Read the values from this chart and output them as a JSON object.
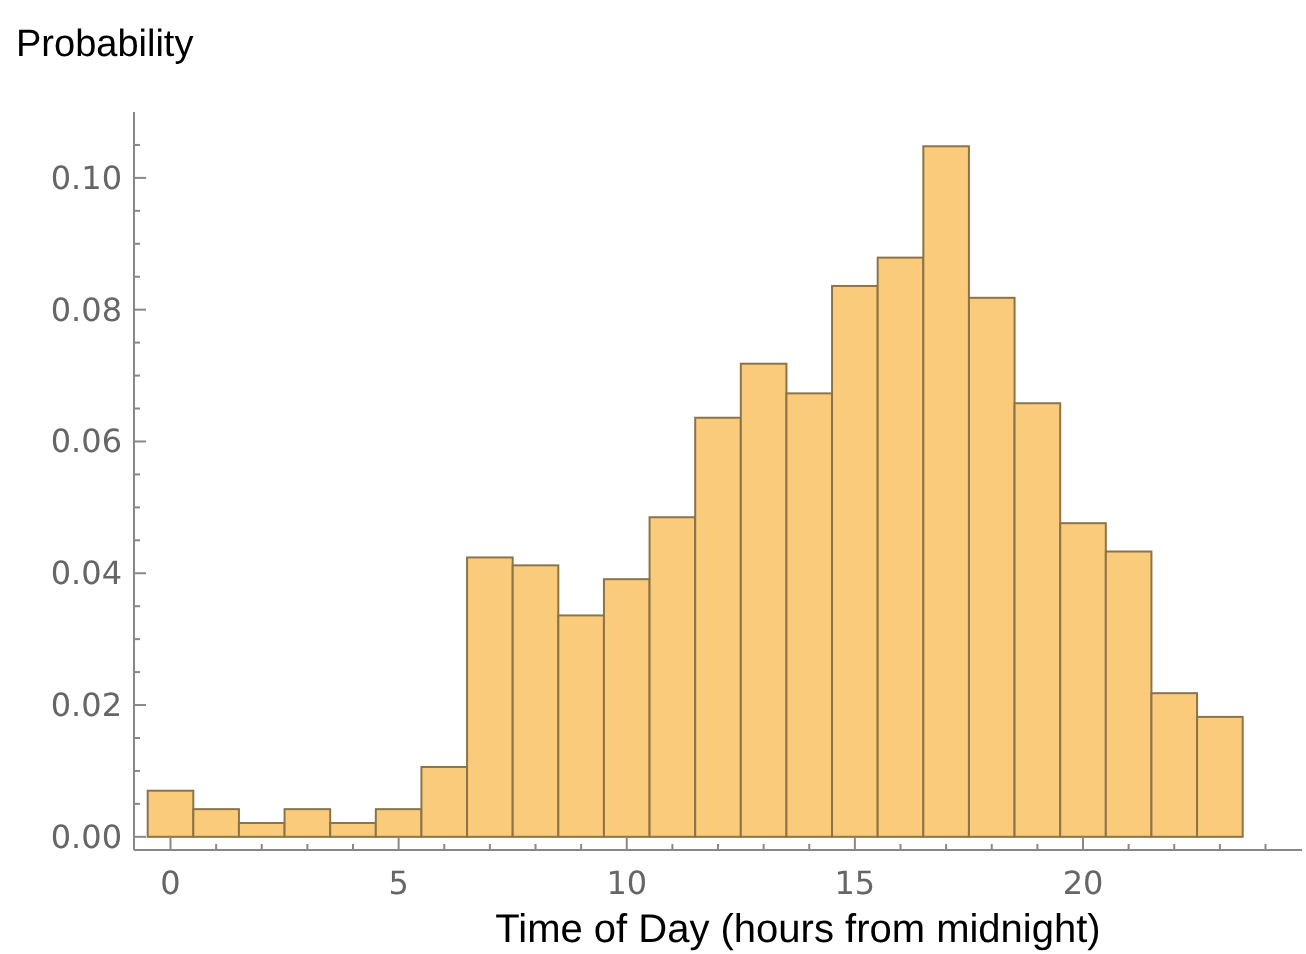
{
  "chart_data": {
    "type": "histogram",
    "ylabel": "Probability",
    "xlabel": "Time of Day (hours from midnight)",
    "bins": [
      -0.5,
      0.5,
      1.5,
      2.5,
      3.5,
      4.5,
      5.5,
      6.5,
      7.5,
      8.5,
      9.5,
      10.5,
      11.5,
      12.5,
      13.5,
      14.5,
      15.5,
      16.5,
      17.5,
      18.5,
      19.5,
      20.5,
      21.5,
      22.5,
      23.5
    ],
    "values": [
      0.007,
      0.0042,
      0.0021,
      0.0042,
      0.0021,
      0.0042,
      0.0106,
      0.0424,
      0.0412,
      0.0336,
      0.0391,
      0.0485,
      0.0636,
      0.0718,
      0.0673,
      0.0836,
      0.0879,
      0.1048,
      0.0818,
      0.0658,
      0.0476,
      0.0433,
      0.0218,
      0.0182
    ],
    "color": "#f9cb7a",
    "xlim": [
      -0.8,
      24.8
    ],
    "xticks": [
      0,
      {
        "value": 1,
        "label": null
      },
      {
        "value": 2,
        "label": null
      },
      {
        "value": 3,
        "label": null
      },
      {
        "value": 4,
        "label": null
      },
      5,
      {
        "value": 6,
        "label": null
      },
      {
        "value": 7,
        "label": null
      },
      {
        "value": 8,
        "label": null
      },
      {
        "value": 9,
        "label": null
      },
      10,
      {
        "value": 11,
        "label": null
      },
      {
        "value": 12,
        "label": null
      },
      {
        "value": 13,
        "label": null
      },
      {
        "value": 14,
        "label": null
      },
      15,
      {
        "value": 16,
        "label": null
      },
      {
        "value": 17,
        "label": null
      },
      {
        "value": 18,
        "label": null
      },
      {
        "value": 19,
        "label": null
      },
      20,
      {
        "value": 21,
        "label": null
      },
      {
        "value": 22,
        "label": null
      },
      {
        "value": 23,
        "label": null
      },
      {
        "value": 24,
        "label": null
      }
    ],
    "ylim": [
      -0.002,
      0.11
    ],
    "yticks": [
      {
        "value": 0,
        "label": "0.00"
      },
      {
        "value": 0.005,
        "label": null
      },
      {
        "value": 0.01,
        "label": null
      },
      {
        "value": 0.015,
        "label": null
      },
      {
        "value": 0.02,
        "label": "0.02"
      },
      {
        "value": 0.025,
        "label": null
      },
      {
        "value": 0.03,
        "label": null
      },
      {
        "value": 0.035,
        "label": null
      },
      {
        "value": 0.04,
        "label": "0.04"
      },
      {
        "value": 0.045,
        "label": null
      },
      {
        "value": 0.05,
        "label": null
      },
      {
        "value": 0.055,
        "label": null
      },
      {
        "value": 0.06,
        "label": "0.06"
      },
      {
        "value": 0.065,
        "label": null
      },
      {
        "value": 0.07,
        "label": null
      },
      {
        "value": 0.075,
        "label": null
      },
      {
        "value": 0.08,
        "label": "0.08"
      },
      {
        "value": 0.085,
        "label": null
      },
      {
        "value": 0.09,
        "label": null
      },
      {
        "value": 0.095,
        "label": null
      },
      {
        "value": 0.1,
        "label": "0.10"
      },
      {
        "value": 0.105,
        "label": null
      }
    ],
    "grid": false
  }
}
